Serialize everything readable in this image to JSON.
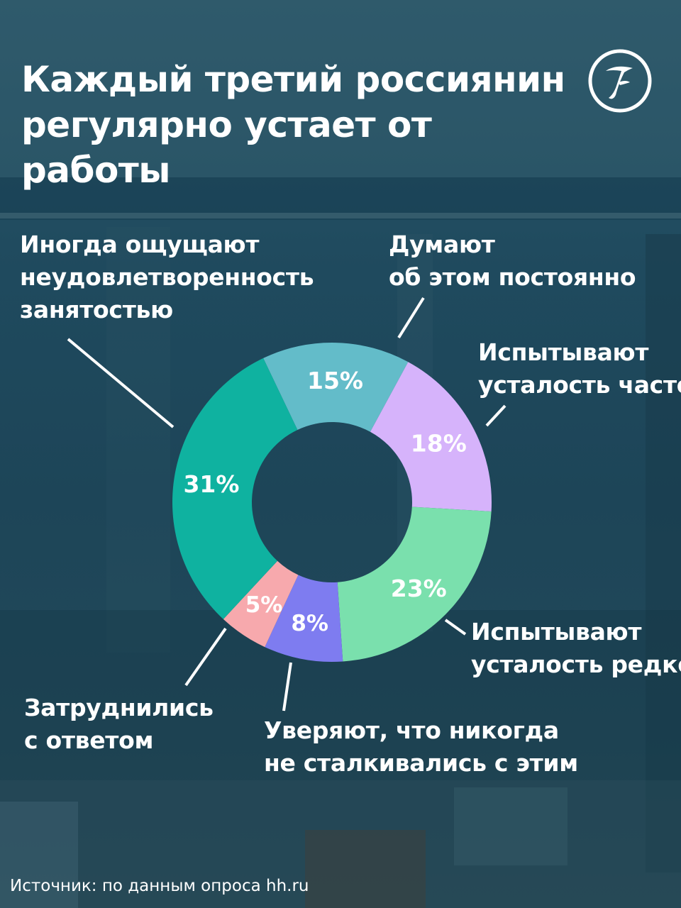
{
  "title": {
    "lines": [
      "Каждый третий россиянин",
      "регулярно устает от работы"
    ]
  },
  "chart_data": {
    "type": "pie",
    "donut": true,
    "start_angle_deg": -25.5,
    "slices": [
      {
        "id": "constantly",
        "value": 15,
        "value_label": "15%",
        "color": "#63bcc9",
        "label_lines": [
          "Думают",
          "об этом постоянно"
        ]
      },
      {
        "id": "often",
        "value": 18,
        "value_label": "18%",
        "color": "#d6b3fb",
        "label_lines": [
          "Испытывают",
          "усталость часто"
        ]
      },
      {
        "id": "rarely",
        "value": 23,
        "value_label": "23%",
        "color": "#7ae0ad",
        "label_lines": [
          "Испытывают",
          "усталость редко"
        ]
      },
      {
        "id": "never",
        "value": 8,
        "value_label": "8%",
        "color": "#7e7cf0",
        "label_lines": [
          "Уверяют, что никогда",
          "не сталкивались с этим"
        ]
      },
      {
        "id": "no-answer",
        "value": 5,
        "value_label": "5%",
        "color": "#f7a9ad",
        "label_lines": [
          "Затруднились",
          "с ответом"
        ]
      },
      {
        "id": "sometimes",
        "value": 31,
        "value_label": "31%",
        "color": "#0fb2a0",
        "label_lines": [
          "Иногда ощущают",
          "неудовлетворенность",
          "занятостью"
        ]
      }
    ]
  },
  "source": "Источник: по данным опроса hh.ru",
  "colors": {
    "text": "#ffffff",
    "background": "#1f4a5e"
  },
  "icons": {
    "logo": "publisher-logo-icon"
  }
}
